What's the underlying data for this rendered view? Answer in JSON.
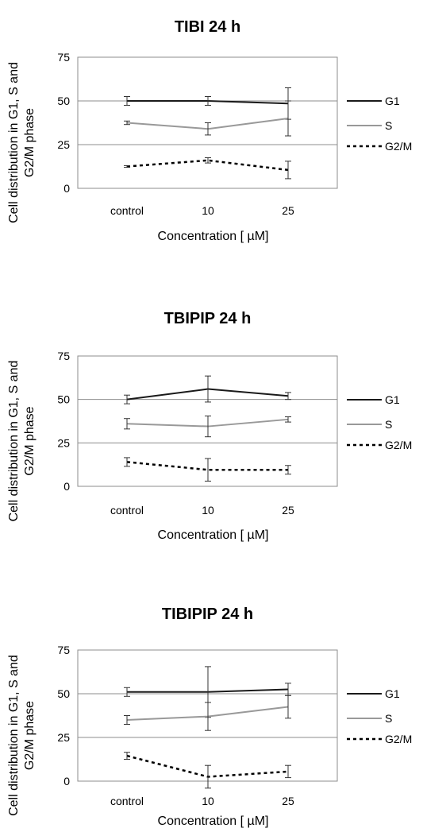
{
  "chart_data": [
    {
      "type": "line",
      "title": "TIBI 24 h",
      "xlabel": "Concentration [ µM]",
      "ylabel_lines": [
        "Cell distribution in G1, S and",
        "G2/M phase"
      ],
      "categories": [
        "control",
        "10",
        "25"
      ],
      "ylim": [
        0,
        75
      ],
      "yticks": [
        "0",
        "25",
        "50",
        "75"
      ],
      "grid": true,
      "legend_position": "right",
      "series": [
        {
          "name": "G1",
          "values": [
            50,
            50,
            48.5
          ],
          "errors": [
            2.5,
            2.5,
            9
          ],
          "color": "#1a1a1a",
          "dash": "solid"
        },
        {
          "name": "S",
          "values": [
            37.5,
            34,
            40
          ],
          "errors": [
            1,
            3.5,
            10
          ],
          "color": "#999999",
          "dash": "solid"
        },
        {
          "name": "G2/M",
          "values": [
            12.5,
            16,
            10.5
          ],
          "errors": [
            0.5,
            1.5,
            5
          ],
          "color": "#000000",
          "dash": "dashed"
        }
      ]
    },
    {
      "type": "line",
      "title": "TBIPIP 24 h",
      "xlabel": "Concentration [ µM]",
      "ylabel_lines": [
        "Cell distribution in G1, S and",
        "G2/M phase"
      ],
      "categories": [
        "control",
        "10",
        "25"
      ],
      "ylim": [
        0,
        75
      ],
      "yticks": [
        "0",
        "25",
        "50",
        "75"
      ],
      "grid": true,
      "legend_position": "right",
      "series": [
        {
          "name": "G1",
          "values": [
            50,
            56,
            52
          ],
          "errors": [
            2.5,
            7.5,
            2
          ],
          "color": "#1a1a1a",
          "dash": "solid"
        },
        {
          "name": "S",
          "values": [
            36,
            34.5,
            38.5
          ],
          "errors": [
            3,
            6,
            1.5
          ],
          "color": "#999999",
          "dash": "solid"
        },
        {
          "name": "G2/M",
          "values": [
            14,
            9.5,
            9.5
          ],
          "errors": [
            2.5,
            6.5,
            2.5
          ],
          "color": "#000000",
          "dash": "dashed"
        }
      ]
    },
    {
      "type": "line",
      "title": "TIBIPIP 24 h",
      "xlabel": "Concentration [ µM]",
      "ylabel_lines": [
        "Cell distribution in G1, S and",
        "G2/M phase"
      ],
      "categories": [
        "control",
        "10",
        "25"
      ],
      "ylim": [
        0,
        75
      ],
      "yticks": [
        "0",
        "25",
        "50",
        "75"
      ],
      "grid": true,
      "legend_position": "right",
      "series": [
        {
          "name": "G1",
          "values": [
            51,
            51,
            52.5
          ],
          "errors": [
            2.5,
            14.5,
            3.5
          ],
          "color": "#1a1a1a",
          "dash": "solid"
        },
        {
          "name": "S",
          "values": [
            35,
            37,
            42.5
          ],
          "errors": [
            2.5,
            8,
            6.5
          ],
          "color": "#999999",
          "dash": "solid"
        },
        {
          "name": "G2/M",
          "values": [
            14.5,
            2.5,
            5.5
          ],
          "errors": [
            2,
            6.5,
            3.5
          ],
          "color": "#000000",
          "dash": "dashed"
        }
      ]
    }
  ]
}
